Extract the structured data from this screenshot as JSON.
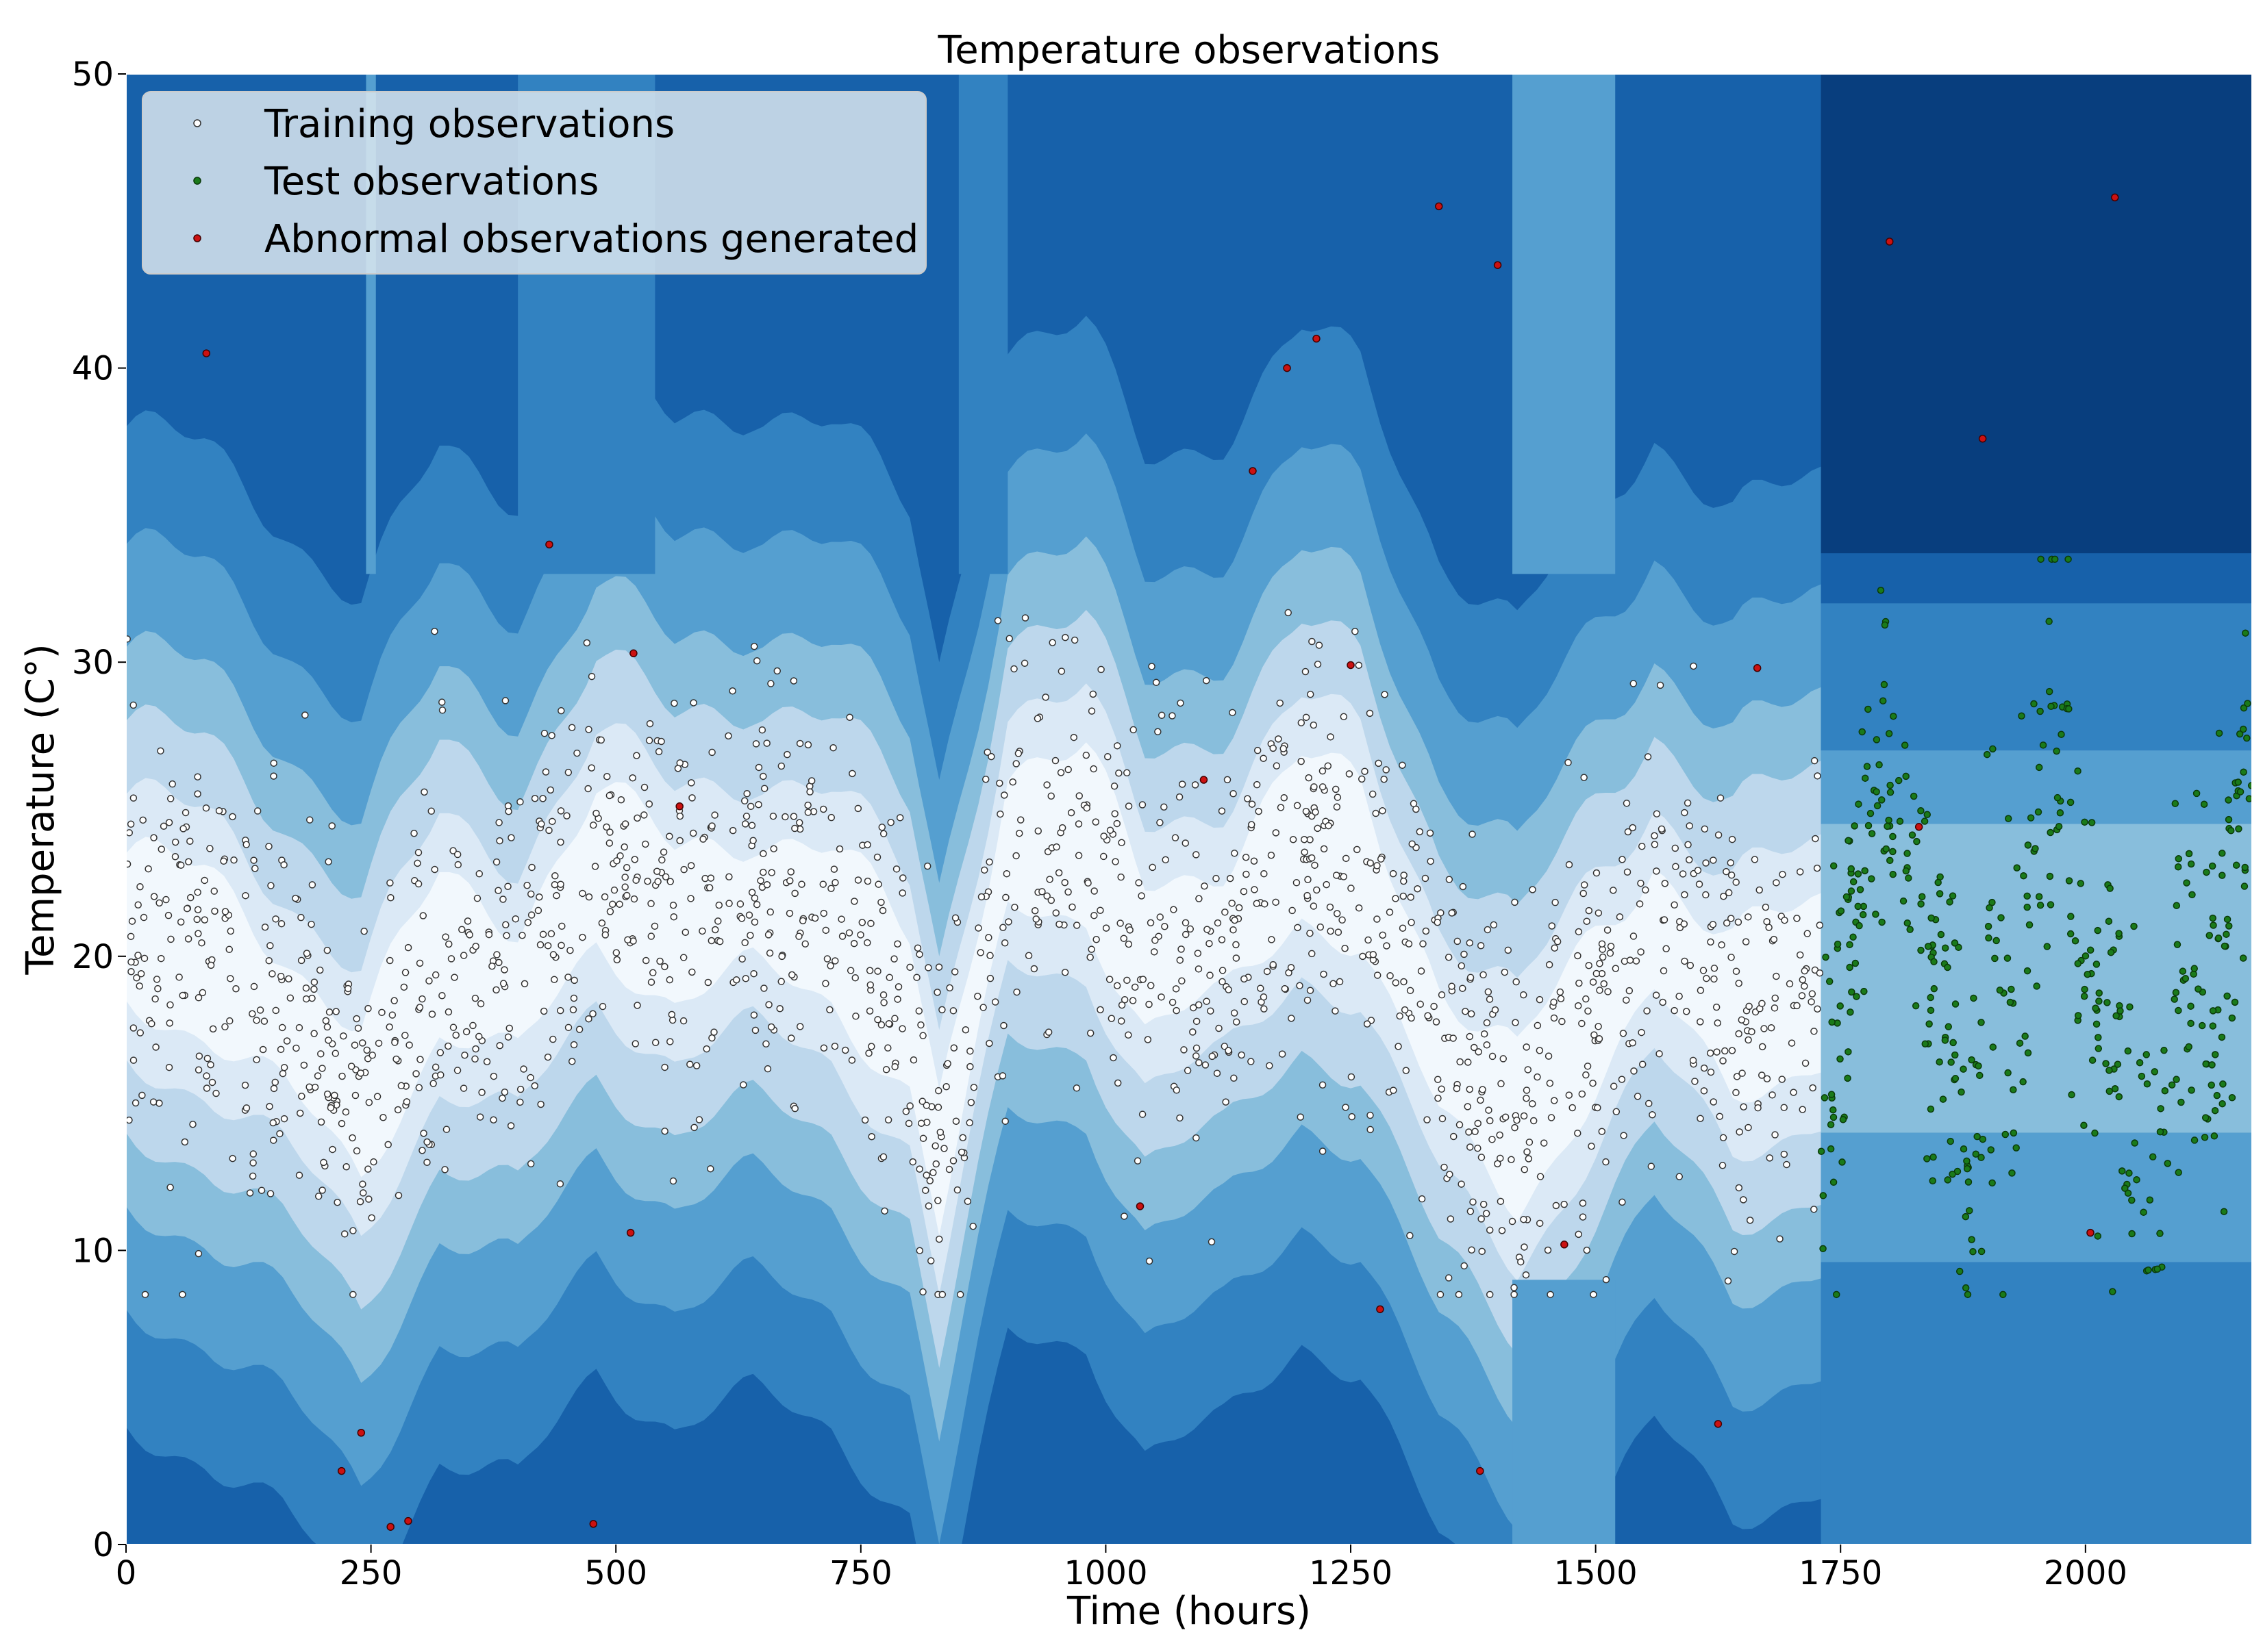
{
  "chart_data": {
    "type": "scatter",
    "title": "Temperature observations",
    "xlabel": "Time (hours)",
    "ylabel": "Temperature (C°)",
    "xlim": [
      0,
      2170
    ],
    "ylim": [
      0,
      50
    ],
    "x_ticks": [
      0,
      250,
      500,
      750,
      1000,
      1250,
      1500,
      1750,
      2000
    ],
    "y_ticks": [
      0,
      10,
      20,
      30,
      40,
      50
    ],
    "grid": false,
    "legend_position": "top-left",
    "background": "filled contour of anomaly score (blues)",
    "contour_colors": [
      "#f2f8fd",
      "#dbe9f6",
      "#bdd7ec",
      "#88bedc",
      "#559fd0",
      "#3282c1",
      "#1761aa",
      "#083e7e"
    ],
    "series": [
      {
        "name": "Training observations",
        "color": "#ffffff",
        "edge": "#333333",
        "count_estimate": 1700,
        "x_range": [
          0,
          1730
        ],
        "segments": [
          {
            "x": 0,
            "y": 21
          },
          {
            "x": 80,
            "y": 20
          },
          {
            "x": 160,
            "y": 18
          },
          {
            "x": 240,
            "y": 15
          },
          {
            "x": 320,
            "y": 20
          },
          {
            "x": 400,
            "y": 19
          },
          {
            "x": 480,
            "y": 23
          },
          {
            "x": 560,
            "y": 21
          },
          {
            "x": 640,
            "y": 22
          },
          {
            "x": 720,
            "y": 21
          },
          {
            "x": 800,
            "y": 18
          },
          {
            "x": 830,
            "y": 13
          },
          {
            "x": 900,
            "y": 24
          },
          {
            "x": 980,
            "y": 24
          },
          {
            "x": 1040,
            "y": 20
          },
          {
            "x": 1120,
            "y": 21
          },
          {
            "x": 1200,
            "y": 24
          },
          {
            "x": 1260,
            "y": 23
          },
          {
            "x": 1340,
            "y": 17
          },
          {
            "x": 1420,
            "y": 14
          },
          {
            "x": 1500,
            "y": 18
          },
          {
            "x": 1560,
            "y": 21
          },
          {
            "x": 1640,
            "y": 18
          },
          {
            "x": 1730,
            "y": 19
          }
        ]
      },
      {
        "name": "Test observations",
        "color": "#1a7a1a",
        "edge": "#0a3a0a",
        "count_estimate": 430,
        "x_range": [
          1730,
          2170
        ],
        "segments": [
          {
            "x": 1730,
            "y": 14
          },
          {
            "x": 1760,
            "y": 20
          },
          {
            "x": 1790,
            "y": 26
          },
          {
            "x": 1820,
            "y": 23
          },
          {
            "x": 1840,
            "y": 18
          },
          {
            "x": 1870,
            "y": 15
          },
          {
            "x": 1880,
            "y": 12
          },
          {
            "x": 1900,
            "y": 20
          },
          {
            "x": 1930,
            "y": 17
          },
          {
            "x": 1960,
            "y": 28
          },
          {
            "x": 1990,
            "y": 21
          },
          {
            "x": 2010,
            "y": 18
          },
          {
            "x": 2040,
            "y": 15
          },
          {
            "x": 2070,
            "y": 13
          },
          {
            "x": 2100,
            "y": 19
          },
          {
            "x": 2130,
            "y": 17
          },
          {
            "x": 2160,
            "y": 24
          }
        ]
      },
      {
        "name": "Abnormal observations generated",
        "color": "#cc1111",
        "edge": "#440000",
        "points": [
          [
            82,
            40.5
          ],
          [
            220,
            2.5
          ],
          [
            240,
            3.8
          ],
          [
            270,
            0.6
          ],
          [
            288,
            0.8
          ],
          [
            432,
            34
          ],
          [
            477,
            0.7
          ],
          [
            515,
            10.6
          ],
          [
            518,
            30.3
          ],
          [
            565,
            25.1
          ],
          [
            1035,
            11.5
          ],
          [
            1100,
            26
          ],
          [
            1150,
            36.5
          ],
          [
            1185,
            40
          ],
          [
            1215,
            41
          ],
          [
            1250,
            29.9
          ],
          [
            1280,
            8
          ],
          [
            1340,
            45.5
          ],
          [
            1382,
            2.5
          ],
          [
            1400,
            43.5
          ],
          [
            1468,
            10.2
          ],
          [
            1625,
            4.1
          ],
          [
            1665,
            29.8
          ],
          [
            1800,
            44.3
          ],
          [
            1830,
            24.4
          ],
          [
            1895,
            37.6
          ],
          [
            2005,
            10.6
          ],
          [
            2030,
            45.8
          ]
        ]
      }
    ]
  }
}
